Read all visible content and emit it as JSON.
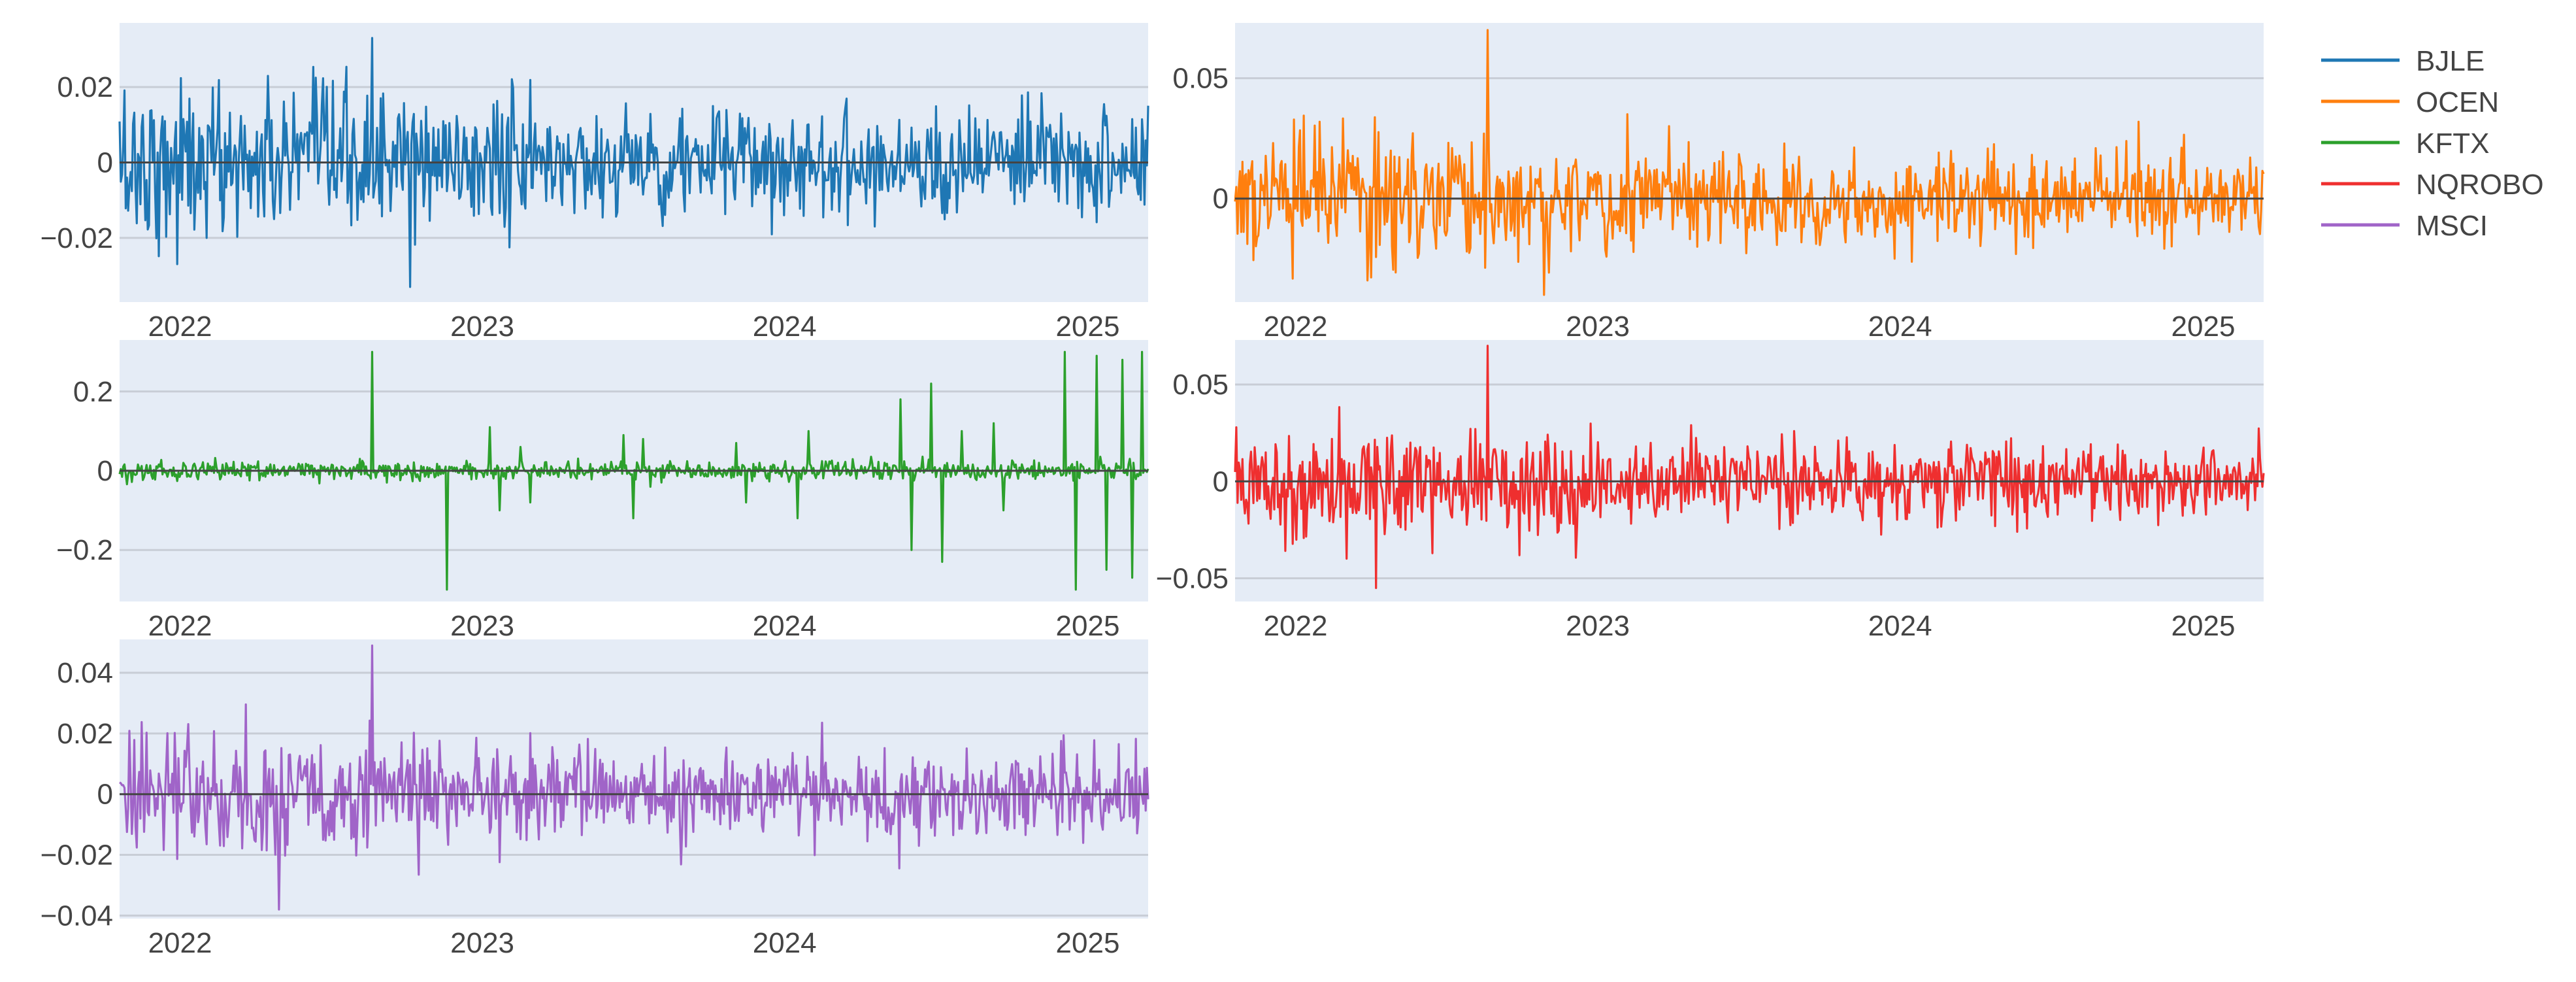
{
  "chart_data": [
    {
      "type": "line",
      "title": "",
      "xlabel": "",
      "ylabel": "",
      "series": [
        {
          "name": "BJLE",
          "color": "#1f77b4"
        }
      ],
      "ylim": [
        -0.037,
        0.037
      ],
      "y_ticks": [
        0.02,
        0,
        -0.02
      ],
      "y_tick_labels": [
        "0.02",
        "0",
        "−0.02"
      ],
      "x_ticks": [
        "2022",
        "2023",
        "2024",
        "2025"
      ],
      "x_range": [
        "2021-10-20",
        "2025-03-15"
      ],
      "stats": {
        "typical_amplitude": 0.009,
        "max": 0.033,
        "min": -0.033
      },
      "grid": true
    },
    {
      "type": "line",
      "title": "",
      "xlabel": "",
      "ylabel": "",
      "series": [
        {
          "name": "OCEN",
          "color": "#ff7f0e"
        }
      ],
      "ylim": [
        -0.043,
        0.073
      ],
      "y_ticks": [
        0.05,
        0
      ],
      "y_tick_labels": [
        "0.05",
        "0"
      ],
      "x_ticks": [
        "2022",
        "2023",
        "2024",
        "2025"
      ],
      "x_range": [
        "2021-10-20",
        "2025-03-15"
      ],
      "stats": {
        "typical_amplitude": 0.012,
        "max": 0.07,
        "min": -0.04
      },
      "grid": true
    },
    {
      "type": "line",
      "title": "",
      "xlabel": "",
      "ylabel": "",
      "series": [
        {
          "name": "KFTX",
          "color": "#2ca02c"
        }
      ],
      "ylim": [
        -0.33,
        0.33
      ],
      "y_ticks": [
        0.2,
        0,
        -0.2
      ],
      "y_tick_labels": [
        "0.2",
        "0",
        "−0.2"
      ],
      "x_ticks": [
        "2022",
        "2023",
        "2024",
        "2025"
      ],
      "x_range": [
        "2021-10-20",
        "2025-03-15"
      ],
      "stats": {
        "typical_amplitude": 0.012,
        "max": 0.3,
        "min": -0.3
      },
      "grid": true
    },
    {
      "type": "line",
      "title": "",
      "xlabel": "",
      "ylabel": "",
      "series": [
        {
          "name": "NQROBO",
          "color": "#ef2f2f"
        }
      ],
      "ylim": [
        -0.062,
        0.073
      ],
      "y_ticks": [
        0.05,
        0,
        -0.05
      ],
      "y_tick_labels": [
        "0.05",
        "0",
        "−0.05"
      ],
      "x_ticks": [
        "2022",
        "2023",
        "2024",
        "2025"
      ],
      "x_range": [
        "2021-10-20",
        "2025-03-15"
      ],
      "stats": {
        "typical_amplitude": 0.013,
        "max": 0.07,
        "min": -0.055
      },
      "grid": true
    },
    {
      "type": "line",
      "title": "",
      "xlabel": "",
      "ylabel": "",
      "series": [
        {
          "name": "MSCI",
          "color": "#a064c8"
        }
      ],
      "ylim": [
        -0.041,
        0.051
      ],
      "y_ticks": [
        0.04,
        0.02,
        0,
        -0.02,
        -0.04
      ],
      "y_tick_labels": [
        "0.04",
        "0.02",
        "0",
        "−0.02",
        "−0.04"
      ],
      "x_ticks": [
        "2022",
        "2023",
        "2024",
        "2025"
      ],
      "x_range": [
        "2021-10-20",
        "2025-03-15"
      ],
      "stats": {
        "typical_amplitude": 0.009,
        "max": 0.049,
        "min": -0.038
      },
      "grid": true
    }
  ],
  "legend": {
    "placement": "top-right",
    "items": [
      {
        "name": "BJLE",
        "color": "#1f77b4"
      },
      {
        "name": "OCEN",
        "color": "#ff7f0e"
      },
      {
        "name": "KFTX",
        "color": "#2ca02c"
      },
      {
        "name": "NQROBO",
        "color": "#ef2f2f"
      },
      {
        "name": "MSCI",
        "color": "#a064c8"
      }
    ]
  },
  "style": {
    "plot_bg": "#e5ecf6",
    "grid_color": "#c8cdd6",
    "zero_line_color": "#444444",
    "text_color": "#444444"
  }
}
